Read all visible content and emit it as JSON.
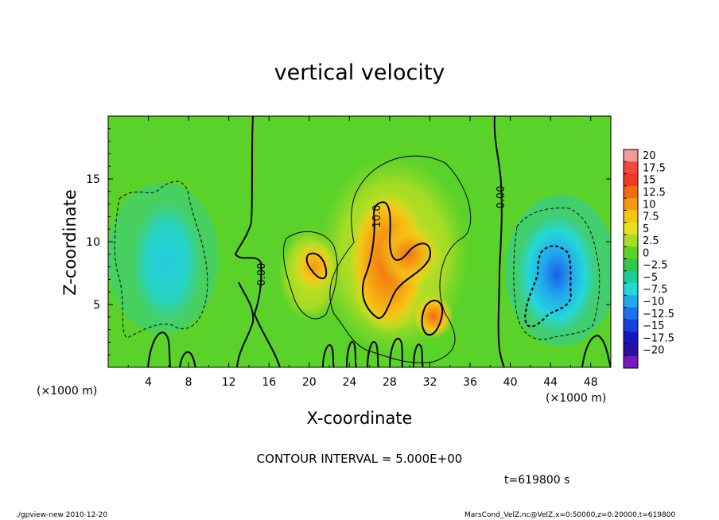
{
  "chart_data": {
    "type": "heatmap",
    "title": "vertical velocity",
    "xlabel": "X-coordinate",
    "ylabel": "Z-coordinate",
    "x_unit_label": "(×1000 m)",
    "y_unit_label": "(×1000 m)",
    "xlim": [
      0,
      50
    ],
    "ylim": [
      0,
      20
    ],
    "x_ticks": [
      4,
      8,
      12,
      16,
      20,
      24,
      28,
      32,
      36,
      40,
      44,
      48
    ],
    "y_ticks": [
      5,
      10,
      15
    ],
    "colorbar": {
      "levels": [
        20,
        17.5,
        15,
        12.5,
        10,
        7.5,
        5,
        2.5,
        0,
        -2.5,
        -5,
        -7.5,
        -10,
        -12.5,
        -15,
        -17.5,
        -20
      ],
      "colors": [
        "#f29a9a",
        "#f0483c",
        "#ee3a22",
        "#f16a14",
        "#f49a10",
        "#f6c415",
        "#e8e020",
        "#a6dc24",
        "#5ad22a",
        "#2ec84a",
        "#1ecc98",
        "#24d8d8",
        "#22a6ee",
        "#1a72ee",
        "#1640e0",
        "#1418b8",
        "#2a10a0",
        "#7a18c0"
      ],
      "labels": [
        "20",
        "17.5",
        "15",
        "12.5",
        "10",
        "7.5",
        "5",
        "2.5",
        "0",
        "−2.5",
        "−5",
        "−7.5",
        "−10",
        "−12.5",
        "−15",
        "−17.5",
        "−20"
      ]
    },
    "features": [
      {
        "kind": "updraft",
        "x": 27.5,
        "z": 7.5,
        "w": 13
      },
      {
        "kind": "updraft",
        "x": 29,
        "z": 10,
        "w": 11
      },
      {
        "kind": "updraft",
        "x": 21,
        "z": 8,
        "w": 7
      },
      {
        "kind": "updraft",
        "x": 32.5,
        "z": 4.5,
        "w": 9
      },
      {
        "kind": "downdraft",
        "x": 44,
        "z": 8,
        "w": -9
      },
      {
        "kind": "downdraft",
        "x": 7,
        "z": 8.5,
        "w": -6
      }
    ],
    "contour_labels": [
      "10.0",
      "0.00",
      "0.00"
    ],
    "grid": false
  },
  "annotations": {
    "contour_interval": "CONTOUR INTERVAL = 5.000E+00",
    "time": "t=619800 s"
  },
  "footer": {
    "left": "./gpview-new  2010-12-20",
    "right": "MarsCond_VelZ.nc@VelZ,x=0:50000,z=0:20000,t=619800"
  }
}
